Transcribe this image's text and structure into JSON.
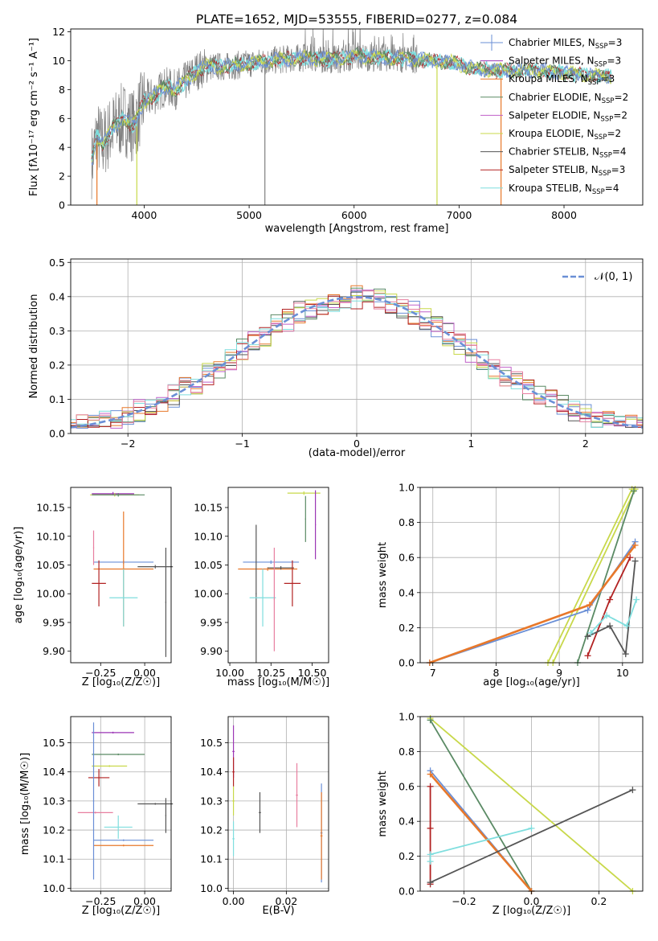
{
  "figure_title": "PLATE=1652, MJD=53555, FIBERID=0277, z=0.084",
  "colors": {
    "chabrier_miles": "#6a8fd6",
    "salpeter_miles": "#9c36b5",
    "kroupa_miles": "#e8782a",
    "chabrier_elodie": "#5a8a64",
    "salpeter_elodie": "#c061c9",
    "kroupa_elodie": "#c8d84a",
    "chabrier_stelib": "#555555",
    "salpeter_stelib": "#b22222",
    "kroupa_stelib": "#7fdede",
    "data": "#808080",
    "pink": "#e87fa0",
    "gaussian": "#6a8fd6"
  },
  "chart_data": [
    {
      "type": "line",
      "title": "PLATE=1652, MJD=53555, FIBERID=0277, z=0.084",
      "xlabel": "wavelength [Angstrom, rest frame]",
      "ylabel": "Flux [fλ10⁻¹⁷ erg cm⁻² s⁻¹ A⁻¹]",
      "xlim": [
        3300,
        8750
      ],
      "ylim": [
        0,
        12.2
      ],
      "xticks": [
        "4000",
        "5000",
        "6000",
        "7000",
        "8000"
      ],
      "yticks": [
        "0",
        "2",
        "4",
        "6",
        "8",
        "10",
        "12"
      ],
      "continuum": {
        "x": [
          3500,
          3550,
          3600,
          3700,
          3800,
          3900,
          4000,
          4100,
          4200,
          4300,
          4400,
          4500,
          4600,
          4800,
          5000,
          5200,
          5500,
          5800,
          6000,
          6300,
          6600,
          6900,
          7200,
          7500,
          7800,
          8100,
          8400
        ],
        "y": [
          3.0,
          4.8,
          4.2,
          5.3,
          6.0,
          5.5,
          7.2,
          7.6,
          8.2,
          8.0,
          8.6,
          9.3,
          9.6,
          9.6,
          9.8,
          10.0,
          10.2,
          10.1,
          10.3,
          10.2,
          10.1,
          9.9,
          9.4,
          9.3,
          9.3,
          9.1,
          8.9
        ]
      },
      "legend_position": "right",
      "series": [
        {
          "name": "Chabrier MILES, N",
          "sub": "SSP",
          "suffix": "=3",
          "marker": "errorbar"
        },
        {
          "name": "Salpeter MILES, N",
          "sub": "SSP",
          "suffix": "=3",
          "marker": "line"
        },
        {
          "name": "Kroupa MILES, N",
          "sub": "SSP",
          "suffix": "=3",
          "marker": "line"
        },
        {
          "name": "Chabrier ELODIE, N",
          "sub": "SSP",
          "suffix": "=2",
          "marker": "line"
        },
        {
          "name": "Salpeter ELODIE, N",
          "sub": "SSP",
          "suffix": "=2",
          "marker": "line"
        },
        {
          "name": "Kroupa ELODIE, N",
          "sub": "SSP",
          "suffix": "=2",
          "marker": "line"
        },
        {
          "name": "Chabrier STELIB, N",
          "sub": "SSP",
          "suffix": "=4",
          "marker": "line"
        },
        {
          "name": "Salpeter STELIB, N",
          "sub": "SSP",
          "suffix": "=3",
          "marker": "line"
        },
        {
          "name": "Kroupa STELIB, N",
          "sub": "SSP",
          "suffix": "=4",
          "marker": "line"
        }
      ]
    },
    {
      "type": "line",
      "xlabel": "(data-model)/error",
      "ylabel": "Normed distribution",
      "xlim": [
        -2.5,
        2.5
      ],
      "ylim": [
        0,
        0.51
      ],
      "xticks": [
        "−2",
        "−1",
        "0",
        "1",
        "2"
      ],
      "yticks": [
        "0.0",
        "0.1",
        "0.2",
        "0.3",
        "0.4",
        "0.5"
      ],
      "grid": true,
      "legend": "𝒩(0, 1)",
      "legend_position": "top-right",
      "step_histograms": 9
    },
    {
      "type": "scatter",
      "xlabel": "Z [log₁₀(Z/Z☉)]",
      "ylabel": "age  [log₁₀(age/yr)]",
      "xlim": [
        -0.42,
        0.15
      ],
      "ylim": [
        9.88,
        10.185
      ],
      "xticks": [
        "−0.25",
        "0.00"
      ],
      "yticks": [
        "9.90",
        "9.95",
        "10.00",
        "10.05",
        "10.10",
        "10.15"
      ]
    },
    {
      "type": "scatter",
      "xlabel": "mass [log₁₀(M/M☉)]",
      "ylabel": "",
      "xlim": [
        9.99,
        10.6
      ],
      "ylim": [
        9.88,
        10.185
      ],
      "xticks": [
        "10.00",
        "10.25",
        "10.50"
      ],
      "yticks": [
        "9.90",
        "9.95",
        "10.00",
        "10.05",
        "10.10",
        "10.15"
      ]
    },
    {
      "type": "line",
      "xlabel": "age  [log₁₀(age/yr)]",
      "ylabel": "mass weight",
      "xlim": [
        6.8,
        10.32
      ],
      "ylim": [
        0,
        1.0
      ],
      "xticks": [
        "7",
        "8",
        "9",
        "10"
      ],
      "yticks": [
        "0.0",
        "0.2",
        "0.4",
        "0.6",
        "0.8",
        "1.0"
      ],
      "grid": true
    },
    {
      "type": "scatter",
      "xlabel": "Z [log₁₀(Z/Z☉)]",
      "ylabel": "mass [log₁₀(M/M☉)]",
      "xlim": [
        -0.42,
        0.15
      ],
      "ylim": [
        9.99,
        10.59
      ],
      "xticks": [
        "−0.25",
        "0.00"
      ],
      "yticks": [
        "10.0",
        "10.1",
        "10.2",
        "10.3",
        "10.4",
        "10.5"
      ],
      "grid": true
    },
    {
      "type": "scatter",
      "xlabel": "E(B-V)",
      "ylabel": "",
      "xlim": [
        -0.002,
        0.036
      ],
      "ylim": [
        9.99,
        10.59
      ],
      "xticks": [
        "0.00",
        "0.02"
      ],
      "yticks": [
        "10.0",
        "10.1",
        "10.2",
        "10.3",
        "10.4",
        "10.5"
      ],
      "grid": true
    },
    {
      "type": "line",
      "xlabel": "Z [log₁₀(Z/Z☉)]",
      "ylabel": "mass weight",
      "xlim": [
        -0.33,
        0.33
      ],
      "ylim": [
        0,
        1.0
      ],
      "xticks": [
        "−0.2",
        "0.0",
        "0.2"
      ],
      "yticks": [
        "0.0",
        "0.2",
        "0.4",
        "0.6",
        "0.8",
        "1.0"
      ],
      "grid": true
    }
  ]
}
